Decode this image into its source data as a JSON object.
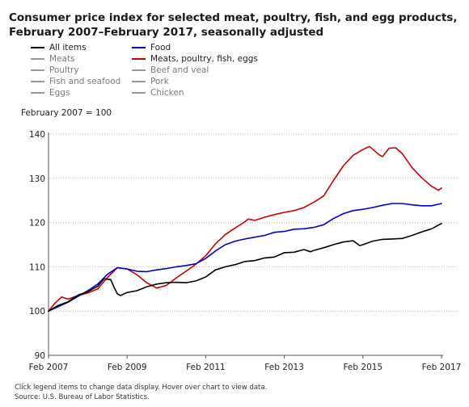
{
  "title": {
    "line1": "Consumer price index for selected meat, poultry, fish, and egg products,",
    "line2": "February 2007–February 2017, seasonally adjusted"
  },
  "legend": [
    {
      "label": "All items",
      "color": "#000000",
      "active": true
    },
    {
      "label": "Food",
      "color": "#0000cc",
      "active": true
    },
    {
      "label": "Meats",
      "color": "#999999",
      "active": false
    },
    {
      "label": "Meats, poultry, fish, eggs",
      "color": "#cc0000",
      "active": true
    },
    {
      "label": "Poultry",
      "color": "#999999",
      "active": false
    },
    {
      "label": "Beef and veal",
      "color": "#999999",
      "active": false
    },
    {
      "label": "Fish and seafood",
      "color": "#999999",
      "active": false
    },
    {
      "label": "Pork",
      "color": "#999999",
      "active": false
    },
    {
      "label": "Eggs",
      "color": "#999999",
      "active": false
    },
    {
      "label": "Chicken",
      "color": "#999999",
      "active": false
    }
  ],
  "base_note": "February 2007 = 100",
  "footer": {
    "instructions": "Click legend items to change data display. Hover over chart to view data.",
    "source": "Source: U.S. Bureau of Labor Statistics."
  },
  "chart_data": {
    "type": "line",
    "title": "Consumer price index for selected meat, poultry, fish, and egg products, February 2007–February 2017, seasonally adjusted",
    "xlabel": "",
    "ylabel": "",
    "ylim": [
      90,
      140
    ],
    "yticks": [
      90,
      100,
      110,
      120,
      130,
      140
    ],
    "xlim": [
      "2007-02",
      "2017-02"
    ],
    "xticks": [
      {
        "date": "2007-02",
        "label": "Feb 2007"
      },
      {
        "date": "2009-02",
        "label": "Feb 2009"
      },
      {
        "date": "2011-02",
        "label": "Feb 2011"
      },
      {
        "date": "2013-02",
        "label": "Feb 2013"
      },
      {
        "date": "2015-02",
        "label": "Feb 2015"
      },
      {
        "date": "2017-02",
        "label": "Feb 2017"
      }
    ],
    "grid": "horizontal dotted",
    "series": [
      {
        "name": "All items",
        "color": "#000000",
        "points": [
          [
            "2007-02",
            100.0
          ],
          [
            "2007-05",
            101.3
          ],
          [
            "2007-08",
            102.1
          ],
          [
            "2007-11",
            103.6
          ],
          [
            "2008-02",
            104.4
          ],
          [
            "2008-05",
            105.6
          ],
          [
            "2008-07",
            107.3
          ],
          [
            "2008-09",
            107.1
          ],
          [
            "2008-10",
            105.4
          ],
          [
            "2008-11",
            103.9
          ],
          [
            "2008-12",
            103.5
          ],
          [
            "2009-02",
            104.2
          ],
          [
            "2009-05",
            104.6
          ],
          [
            "2009-08",
            105.5
          ],
          [
            "2009-11",
            106.1
          ],
          [
            "2010-02",
            106.4
          ],
          [
            "2010-05",
            106.5
          ],
          [
            "2010-08",
            106.4
          ],
          [
            "2010-11",
            106.8
          ],
          [
            "2011-02",
            107.7
          ],
          [
            "2011-05",
            109.3
          ],
          [
            "2011-08",
            110.0
          ],
          [
            "2011-11",
            110.5
          ],
          [
            "2012-02",
            111.2
          ],
          [
            "2012-05",
            111.4
          ],
          [
            "2012-08",
            112.0
          ],
          [
            "2012-11",
            112.2
          ],
          [
            "2013-02",
            113.2
          ],
          [
            "2013-05",
            113.3
          ],
          [
            "2013-08",
            113.9
          ],
          [
            "2013-10",
            113.4
          ],
          [
            "2013-11",
            113.7
          ],
          [
            "2014-02",
            114.3
          ],
          [
            "2014-05",
            115.0
          ],
          [
            "2014-08",
            115.6
          ],
          [
            "2014-11",
            115.9
          ],
          [
            "2015-01",
            114.8
          ],
          [
            "2015-02",
            115.0
          ],
          [
            "2015-05",
            115.8
          ],
          [
            "2015-08",
            116.2
          ],
          [
            "2015-11",
            116.3
          ],
          [
            "2016-02",
            116.4
          ],
          [
            "2016-05",
            117.1
          ],
          [
            "2016-08",
            117.9
          ],
          [
            "2016-11",
            118.6
          ],
          [
            "2017-02",
            119.8
          ]
        ]
      },
      {
        "name": "Food",
        "color": "#0000cc",
        "points": [
          [
            "2007-02",
            100.0
          ],
          [
            "2007-05",
            101.0
          ],
          [
            "2007-08",
            102.0
          ],
          [
            "2007-11",
            103.3
          ],
          [
            "2008-02",
            104.6
          ],
          [
            "2008-05",
            106.1
          ],
          [
            "2008-08",
            108.3
          ],
          [
            "2008-11",
            109.8
          ],
          [
            "2009-02",
            109.5
          ],
          [
            "2009-05",
            109.0
          ],
          [
            "2009-08",
            108.9
          ],
          [
            "2009-11",
            109.3
          ],
          [
            "2010-02",
            109.6
          ],
          [
            "2010-05",
            110.0
          ],
          [
            "2010-08",
            110.3
          ],
          [
            "2010-11",
            110.7
          ],
          [
            "2011-02",
            111.9
          ],
          [
            "2011-05",
            113.6
          ],
          [
            "2011-08",
            115.0
          ],
          [
            "2011-11",
            115.8
          ],
          [
            "2012-02",
            116.3
          ],
          [
            "2012-05",
            116.7
          ],
          [
            "2012-08",
            117.1
          ],
          [
            "2012-11",
            117.8
          ],
          [
            "2013-02",
            118.0
          ],
          [
            "2013-05",
            118.5
          ],
          [
            "2013-08",
            118.6
          ],
          [
            "2013-11",
            118.9
          ],
          [
            "2014-02",
            119.5
          ],
          [
            "2014-05",
            120.9
          ],
          [
            "2014-08",
            122.0
          ],
          [
            "2014-11",
            122.7
          ],
          [
            "2015-02",
            123.0
          ],
          [
            "2015-05",
            123.4
          ],
          [
            "2015-08",
            123.9
          ],
          [
            "2015-11",
            124.3
          ],
          [
            "2016-02",
            124.3
          ],
          [
            "2016-05",
            124.0
          ],
          [
            "2016-08",
            123.8
          ],
          [
            "2016-11",
            123.8
          ],
          [
            "2017-02",
            124.3
          ]
        ]
      },
      {
        "name": "Meats, poultry, fish, eggs",
        "color": "#cc0000",
        "points": [
          [
            "2007-02",
            100.0
          ],
          [
            "2007-04",
            101.8
          ],
          [
            "2007-06",
            103.2
          ],
          [
            "2007-08",
            102.7
          ],
          [
            "2007-11",
            103.5
          ],
          [
            "2008-02",
            104.1
          ],
          [
            "2008-05",
            105.0
          ],
          [
            "2008-08",
            107.6
          ],
          [
            "2008-11",
            109.8
          ],
          [
            "2009-02",
            109.5
          ],
          [
            "2009-05",
            108.2
          ],
          [
            "2009-08",
            106.4
          ],
          [
            "2009-11",
            105.2
          ],
          [
            "2010-02",
            105.8
          ],
          [
            "2010-05",
            107.5
          ],
          [
            "2010-08",
            109.0
          ],
          [
            "2010-11",
            110.6
          ],
          [
            "2011-02",
            112.5
          ],
          [
            "2011-05",
            115.2
          ],
          [
            "2011-08",
            117.3
          ],
          [
            "2011-11",
            118.8
          ],
          [
            "2012-02",
            120.2
          ],
          [
            "2012-03",
            120.8
          ],
          [
            "2012-05",
            120.5
          ],
          [
            "2012-08",
            121.2
          ],
          [
            "2012-11",
            121.8
          ],
          [
            "2013-02",
            122.3
          ],
          [
            "2013-05",
            122.7
          ],
          [
            "2013-08",
            123.4
          ],
          [
            "2013-11",
            124.6
          ],
          [
            "2014-02",
            126.0
          ],
          [
            "2014-05",
            129.5
          ],
          [
            "2014-08",
            132.8
          ],
          [
            "2014-11",
            135.2
          ],
          [
            "2015-02",
            136.5
          ],
          [
            "2015-04",
            137.2
          ],
          [
            "2015-07",
            135.3
          ],
          [
            "2015-08",
            134.9
          ],
          [
            "2015-10",
            136.8
          ],
          [
            "2015-12",
            136.9
          ],
          [
            "2016-02",
            135.6
          ],
          [
            "2016-05",
            132.4
          ],
          [
            "2016-08",
            130.1
          ],
          [
            "2016-11",
            128.2
          ],
          [
            "2017-01",
            127.3
          ],
          [
            "2017-02",
            127.8
          ]
        ]
      }
    ]
  }
}
